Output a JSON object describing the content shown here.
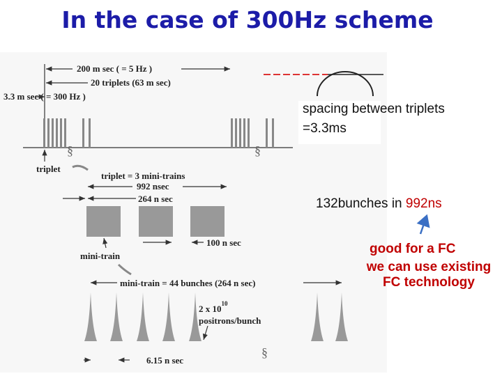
{
  "title": "In the case of 300Hz scheme",
  "diagram": {
    "period_label": "200 m sec ( = 5 Hz )",
    "triplets_label": "20 triplets (63 m sec)",
    "spacing_label": "3.3 m sec ( = 300 Hz )",
    "triplet": "triplet",
    "triplet_def": "triplet = 3 mini-trains",
    "triplet_length": "992 nsec",
    "minitrain_length": "264 n sec",
    "gap": "100 n sec",
    "minitrain": "mini-train",
    "minitrain_def": "mini-train = 44 bunches (264 n sec)",
    "charge": "2 x 10",
    "charge_exp": "10",
    "charge_unit": "positrons/bunch",
    "bunch_spacing": "6.15 n sec"
  },
  "notes": {
    "spacing": [
      "spacing between triplets",
      "=3.3ms"
    ],
    "bunches": {
      "text": "132bunches in ",
      "highlight": "992ns"
    },
    "verdict": "good for a FC",
    "detail": [
      "we can use existing",
      "FC technology"
    ]
  }
}
